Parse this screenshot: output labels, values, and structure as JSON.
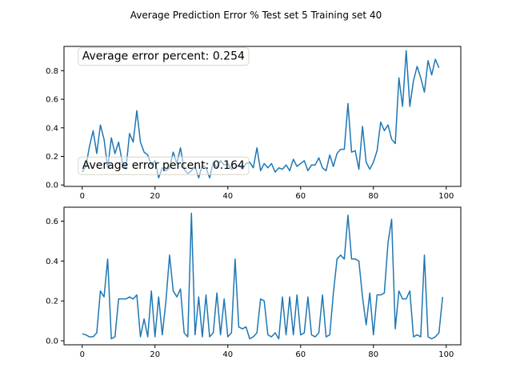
{
  "chart_data": {
    "title": "Average Prediction Error % Test set 5 Training set 40",
    "line_color": "#1f77b4",
    "charts": [
      {
        "type": "line",
        "xlim": [
          -5,
          104
        ],
        "ylim": [
          -0.01,
          0.97
        ],
        "xticks": [
          0,
          20,
          40,
          60,
          80,
          100
        ],
        "yticks": [
          0.0,
          0.2,
          0.4,
          0.6,
          0.8
        ],
        "ytick_labels": [
          "0.0",
          "0.2",
          "0.4",
          "0.6",
          "0.8"
        ],
        "annotations": [
          {
            "text": "Average error percent: 0.254",
            "x": 0,
            "y": 0.905
          },
          {
            "text": "Average error percent: 0.164",
            "x": 0,
            "y": 0.14
          }
        ],
        "x": [
          0,
          1,
          2,
          3,
          4,
          5,
          6,
          7,
          8,
          9,
          10,
          11,
          12,
          13,
          14,
          15,
          16,
          17,
          18,
          19,
          20,
          21,
          22,
          23,
          24,
          25,
          26,
          27,
          28,
          29,
          30,
          31,
          32,
          33,
          34,
          35,
          36,
          37,
          38,
          39,
          40,
          41,
          42,
          43,
          44,
          45,
          46,
          47,
          48,
          49,
          50,
          51,
          52,
          53,
          54,
          55,
          56,
          57,
          58,
          59,
          60,
          61,
          62,
          63,
          64,
          65,
          66,
          67,
          68,
          69,
          70,
          71,
          72,
          73,
          74,
          75,
          76,
          77,
          78,
          79,
          80,
          81,
          82,
          83,
          84,
          85,
          86,
          87,
          88,
          89,
          90,
          91,
          92,
          93,
          94,
          95,
          96,
          97,
          98,
          99
        ],
        "y": [
          0.09,
          0.13,
          0.27,
          0.38,
          0.22,
          0.42,
          0.32,
          0.12,
          0.33,
          0.22,
          0.3,
          0.16,
          0.11,
          0.36,
          0.3,
          0.52,
          0.3,
          0.23,
          0.21,
          0.14,
          0.17,
          0.05,
          0.12,
          0.1,
          0.12,
          0.23,
          0.15,
          0.26,
          0.11,
          0.08,
          0.1,
          0.13,
          0.05,
          0.14,
          0.12,
          0.05,
          0.16,
          0.12,
          0.17,
          0.14,
          0.15,
          0.11,
          0.12,
          0.14,
          0.11,
          0.15,
          0.16,
          0.12,
          0.26,
          0.1,
          0.15,
          0.12,
          0.15,
          0.09,
          0.12,
          0.11,
          0.14,
          0.1,
          0.18,
          0.13,
          0.15,
          0.17,
          0.1,
          0.14,
          0.14,
          0.19,
          0.12,
          0.1,
          0.21,
          0.13,
          0.22,
          0.25,
          0.25,
          0.57,
          0.23,
          0.24,
          0.11,
          0.41,
          0.16,
          0.11,
          0.16,
          0.24,
          0.44,
          0.38,
          0.42,
          0.32,
          0.29,
          0.75,
          0.55,
          0.94,
          0.55,
          0.73,
          0.83,
          0.75,
          0.65,
          0.87,
          0.77,
          0.88,
          0.82,
          null
        ]
      },
      {
        "type": "line",
        "xlim": [
          -5,
          104
        ],
        "ylim": [
          -0.02,
          0.67
        ],
        "xticks": [
          0,
          20,
          40,
          60,
          80,
          100
        ],
        "yticks": [
          0.0,
          0.2,
          0.4,
          0.6
        ],
        "ytick_labels": [
          "0.0",
          "0.2",
          "0.4",
          "0.6"
        ],
        "annotations": [],
        "x": [
          0,
          1,
          2,
          3,
          4,
          5,
          6,
          7,
          8,
          9,
          10,
          11,
          12,
          13,
          14,
          15,
          16,
          17,
          18,
          19,
          20,
          21,
          22,
          23,
          24,
          25,
          26,
          27,
          28,
          29,
          30,
          31,
          32,
          33,
          34,
          35,
          36,
          37,
          38,
          39,
          40,
          41,
          42,
          43,
          44,
          45,
          46,
          47,
          48,
          49,
          50,
          51,
          52,
          53,
          54,
          55,
          56,
          57,
          58,
          59,
          60,
          61,
          62,
          63,
          64,
          65,
          66,
          67,
          68,
          69,
          70,
          71,
          72,
          73,
          74,
          75,
          76,
          77,
          78,
          79,
          80,
          81,
          82,
          83,
          84,
          85,
          86,
          87,
          88,
          89,
          90,
          91,
          92,
          93,
          94,
          95,
          96,
          97,
          98,
          99
        ],
        "y": [
          0.035,
          0.03,
          0.02,
          0.02,
          0.04,
          0.25,
          0.22,
          0.41,
          0.01,
          0.02,
          0.21,
          0.21,
          0.21,
          0.22,
          0.21,
          0.23,
          0.02,
          0.11,
          0.02,
          0.25,
          0.02,
          0.22,
          0.03,
          0.2,
          0.43,
          0.25,
          0.22,
          0.26,
          0.04,
          0.02,
          0.64,
          0.03,
          0.22,
          0.02,
          0.23,
          0.02,
          0.04,
          0.24,
          0.03,
          0.21,
          0.02,
          0.04,
          0.41,
          0.07,
          0.06,
          0.07,
          0.01,
          0.02,
          0.04,
          0.21,
          0.2,
          0.03,
          0.02,
          0.04,
          0.01,
          0.22,
          0.03,
          0.22,
          0.03,
          0.23,
          0.03,
          0.04,
          0.22,
          0.03,
          0.02,
          0.04,
          0.23,
          0.02,
          0.03,
          0.24,
          0.41,
          0.43,
          0.41,
          0.63,
          0.41,
          0.41,
          0.4,
          0.22,
          0.08,
          0.24,
          0.03,
          0.23,
          0.23,
          0.24,
          0.49,
          0.61,
          0.06,
          0.25,
          0.21,
          0.21,
          0.25,
          0.02,
          0.03,
          0.02,
          0.43,
          0.02,
          0.01,
          0.02,
          0.04,
          0.22
        ]
      }
    ]
  }
}
